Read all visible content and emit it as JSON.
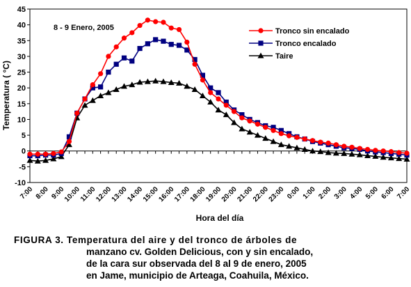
{
  "chart_data": {
    "type": "line",
    "annotation": "8 - 9 Enero, 2005",
    "xlabel": "Hora del día",
    "ylabel": "Temperatura ( °C)",
    "ylim": [
      -10,
      45
    ],
    "yticks": [
      -10,
      -5,
      0,
      5,
      10,
      15,
      20,
      25,
      30,
      35,
      40,
      45
    ],
    "legend_position": "top-right",
    "categories": [
      "7:00",
      "8:00",
      "9:00",
      "10:00",
      "11:00",
      "12:00",
      "13:00",
      "14:00",
      "15:00",
      "16:00",
      "17:00",
      "18:00",
      "19:00",
      "20:00",
      "21:00",
      "22:00",
      "23:00",
      "0:00",
      "1:00",
      "2:00",
      "3:00",
      "4:00",
      "5:00",
      "6:00",
      "7:00"
    ],
    "x": [
      7,
      7.5,
      8,
      8.5,
      9,
      9.5,
      10,
      10.5,
      11,
      11.5,
      12,
      12.5,
      13,
      13.5,
      14,
      14.5,
      15,
      15.5,
      16,
      16.5,
      17,
      17.5,
      18,
      18.5,
      19,
      19.5,
      20,
      20.5,
      21,
      21.5,
      22,
      22.5,
      23,
      23.5,
      24,
      24.5,
      25,
      25.5,
      26,
      26.5,
      27,
      27.5,
      28,
      28.5,
      29,
      29.5,
      30,
      30.5,
      31
    ],
    "series": [
      {
        "name": "Tronco  sin encalado",
        "color": "#ff0000",
        "marker": "circle",
        "values": [
          -1,
          -1,
          -1,
          -0.8,
          -0.3,
          3,
          12,
          16.5,
          21,
          24.5,
          30,
          33,
          35.8,
          37.5,
          39.8,
          41.5,
          41,
          40.8,
          39,
          38.5,
          34.5,
          27.5,
          22.5,
          18.5,
          16.5,
          14.5,
          12.5,
          10.5,
          9.5,
          8.5,
          7.5,
          6.5,
          5.5,
          4.8,
          4.3,
          3.8,
          3.3,
          2.8,
          2.5,
          2,
          1.5,
          1.2,
          0.8,
          0.5,
          0.2,
          0,
          -0.2,
          -0.5,
          -0.7
        ]
      },
      {
        "name": "Tronco encalado",
        "color": "#000080",
        "marker": "square",
        "values": [
          -1.5,
          -1.5,
          -1.3,
          -1.3,
          -0.8,
          4.5,
          12,
          16.5,
          20,
          20.3,
          25,
          27.5,
          29.5,
          28.5,
          32.5,
          34,
          35.3,
          34.8,
          33.8,
          33.5,
          32,
          29,
          24,
          20,
          18.5,
          15.5,
          13,
          11.5,
          10,
          9,
          8,
          7.5,
          6.5,
          5.5,
          4.5,
          3.8,
          3,
          2.5,
          2,
          1.5,
          1,
          0.8,
          0.5,
          0,
          -0.3,
          -0.5,
          -0.8,
          -1,
          -1.3
        ]
      },
      {
        "name": "Taire",
        "color": "#000000",
        "marker": "triangle",
        "values": [
          -3,
          -3.2,
          -3,
          -2.5,
          -1.8,
          2,
          10.5,
          14.5,
          16,
          17.5,
          18.5,
          19.5,
          20.5,
          21,
          21.8,
          22,
          22.2,
          22,
          21.7,
          21.5,
          20.5,
          19.5,
          17.5,
          15.5,
          13,
          11.5,
          9,
          7,
          6,
          5,
          4,
          3,
          2,
          1.5,
          1,
          0.5,
          0,
          -0.2,
          -0.5,
          -0.7,
          -0.8,
          -1,
          -1.2,
          -1.5,
          -1.7,
          -2,
          -2.2,
          -2.4,
          -2.6
        ]
      }
    ]
  },
  "caption": {
    "label": "FIGURA 3.",
    "line1": "Temperatura del aire y del tronco de árboles de",
    "line2": "manzano cv. Golden Delicious, con y sin encalado,",
    "line3": "de la cara sur observada del 8 al 9 de enero, 2005",
    "line4": "en Jame, municipio de Arteaga, Coahuila, México."
  }
}
